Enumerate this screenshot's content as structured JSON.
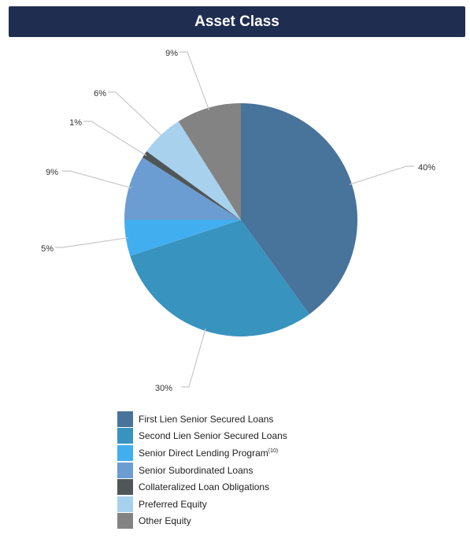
{
  "chart_data": {
    "type": "pie",
    "title": "Asset Class",
    "slices": [
      {
        "label": "First Lien Senior Secured Loans",
        "sup": "",
        "value": 40,
        "display": "40%",
        "color": "#48739b"
      },
      {
        "label": "Second Lien Senior Secured Loans",
        "sup": "",
        "value": 30,
        "display": "30%",
        "color": "#3893be"
      },
      {
        "label": "Senior Direct Lending Program",
        "sup": "(10)",
        "value": 5,
        "display": "5%",
        "color": "#41aef0"
      },
      {
        "label": "Senior Subordinated Loans",
        "sup": "",
        "value": 9,
        "display": "9%",
        "color": "#6b9dd2"
      },
      {
        "label": "Collateralized Loan Obligations",
        "sup": "",
        "value": 1,
        "display": "1%",
        "color": "#505658"
      },
      {
        "label": "Preferred Equity",
        "sup": "",
        "value": 6,
        "display": "6%",
        "color": "#a8d1ed"
      },
      {
        "label": "Other Equity",
        "sup": "",
        "value": 9,
        "display": "9%",
        "color": "#838383"
      }
    ],
    "start": "12 o'clock",
    "direction": "clockwise",
    "legend_position": "bottom"
  }
}
